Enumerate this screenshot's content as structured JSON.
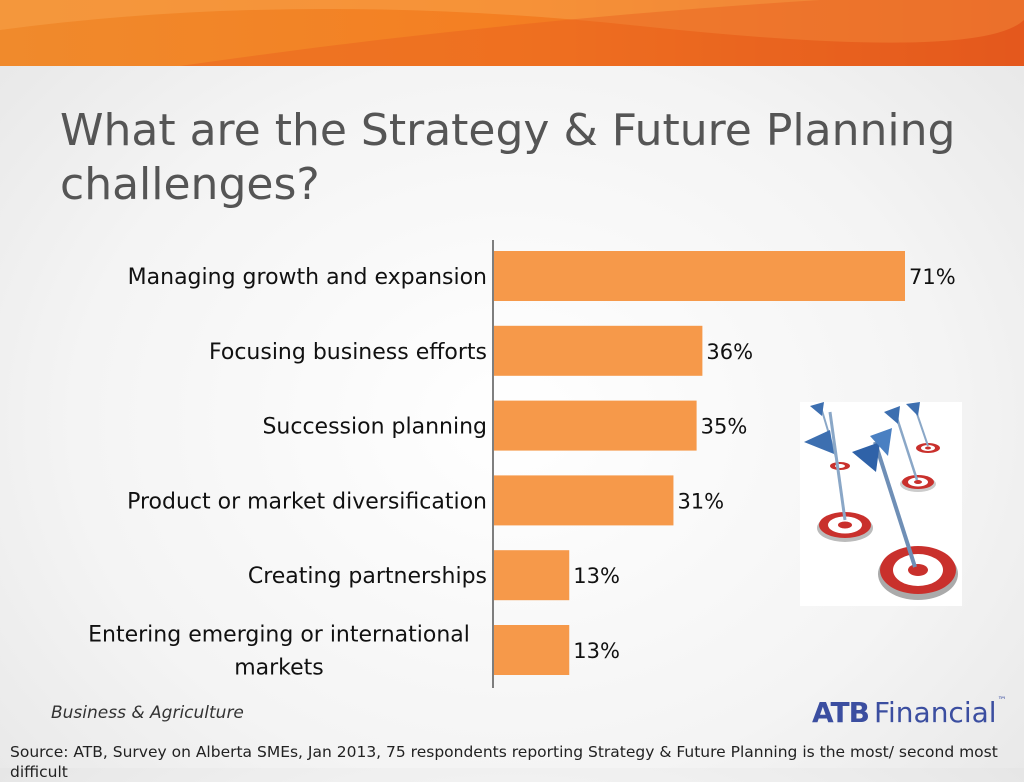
{
  "slide": {
    "title": "What are the Strategy & Future Planning challenges?",
    "footer_left": "Business & Agriculture",
    "logo_bold": "ATB",
    "logo_rest": "Financial",
    "logo_tm": "™",
    "source": "Source: ATB, Survey on Alberta SMEs, Jan 2013, 75 respondents reporting Strategy & Future Planning is the most/ second most difficult",
    "image_icon": "darts-on-targets-illustration"
  },
  "colors": {
    "bar": "#f6994a",
    "banner": "#ee6a1e",
    "axis": "#555555",
    "logo": "#3b4ea0"
  },
  "chart_data": {
    "type": "bar",
    "orientation": "horizontal",
    "categories": [
      "Managing growth and expansion",
      "Focusing business efforts",
      "Succession planning",
      "Product or market diversification",
      "Creating partnerships",
      "Entering emerging or international markets"
    ],
    "values": [
      71,
      36,
      35,
      31,
      13,
      13
    ],
    "data_labels": [
      "71%",
      "36%",
      "35%",
      "31%",
      "13%",
      "13%"
    ],
    "xlim": [
      0,
      71
    ],
    "grid": false,
    "legend": "none"
  }
}
